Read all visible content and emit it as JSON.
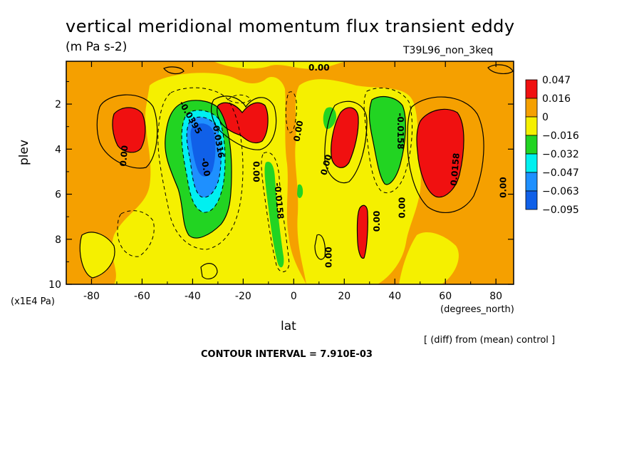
{
  "chart_data": {
    "type": "heatmap",
    "title": "vertical meridional momentum flux transient eddy",
    "units": "(m Pa s-2)",
    "run_label": "T39L96_non_3keq",
    "xlabel": "lat",
    "x_unit": "(degrees_north)",
    "ylabel": "plev",
    "y_unit": "(x1E4 Pa)",
    "x_ticks": [
      "-80",
      "-60",
      "-40",
      "-20",
      "0",
      "20",
      "40",
      "60",
      "80"
    ],
    "y_ticks": [
      "2",
      "4",
      "6",
      "8",
      "10"
    ],
    "xlim": [
      -90,
      87
    ],
    "ylim": [
      10,
      0.1
    ],
    "note": "[ (diff) from (mean) control ]",
    "contour_interval": "CONTOUR INTERVAL = 7.910E-03",
    "legend": {
      "levels": [
        "0.047",
        "0.016",
        "0",
        "−0.016",
        "−0.032",
        "−0.047",
        "−0.063",
        "−0.095"
      ],
      "colors": [
        "#f01010",
        "#f5a000",
        "#f5f000",
        "#22d422",
        "#00f0f0",
        "#1e90ff",
        "#1060e8"
      ]
    },
    "contour_labels": [
      {
        "text": "0.00",
        "lat": 10,
        "p": 0.4,
        "angle": 0
      },
      {
        "text": "0.00",
        "lat": -67,
        "p": 4.3,
        "angle": -85
      },
      {
        "text": "-0.0395",
        "lat": -41,
        "p": 2.6,
        "angle": 60
      },
      {
        "text": "-0.0316",
        "lat": -30,
        "p": 3.6,
        "angle": 80
      },
      {
        "text": "-0.0",
        "lat": -35,
        "p": 4.8,
        "angle": 80
      },
      {
        "text": "0.00",
        "lat": -15,
        "p": 5.0,
        "angle": 90
      },
      {
        "text": "-0.0158",
        "lat": -6,
        "p": 6.3,
        "angle": 85
      },
      {
        "text": "0.00",
        "lat": 2,
        "p": 3.2,
        "angle": -80
      },
      {
        "text": "0.00",
        "lat": 13,
        "p": 4.7,
        "angle": -75
      },
      {
        "text": "-0.0158",
        "lat": 42,
        "p": 3.2,
        "angle": 90
      },
      {
        "text": "0.00",
        "lat": 33,
        "p": 7.2,
        "angle": -90
      },
      {
        "text": "0.00",
        "lat": 43,
        "p": 6.6,
        "angle": -90
      },
      {
        "text": "0.0158",
        "lat": 64,
        "p": 4.9,
        "angle": -85
      },
      {
        "text": "0.00",
        "lat": 83,
        "p": 5.7,
        "angle": -90
      },
      {
        "text": "0.00",
        "lat": 14,
        "p": 8.8,
        "angle": -90
      }
    ],
    "regions": [
      {
        "level": "0.016..0.047",
        "lat": [
          -90,
          87
        ],
        "p": [
          0.1,
          10
        ]
      },
      {
        "level": "0..-0.016",
        "lat": [
          -52,
          15
        ],
        "p": [
          1.0,
          10
        ]
      },
      {
        "level": "0..-0.016",
        "lat": [
          15,
          50
        ],
        "p": [
          1.5,
          9.5
        ]
      },
      {
        "level": ">0.047",
        "lat": [
          -71,
          -58
        ],
        "p": [
          2.2,
          4.4
        ]
      },
      {
        "level": ">0.047",
        "lat": [
          -30,
          -11
        ],
        "p": [
          1.9,
          3.8
        ]
      },
      {
        "level": ">0.047",
        "lat": [
          16,
          31
        ],
        "p": [
          2.2,
          5.0
        ]
      },
      {
        "level": ">0.047",
        "lat": [
          47,
          67
        ],
        "p": [
          2.0,
          6.2
        ]
      },
      {
        "level": ">0.047",
        "lat": [
          27,
          30
        ],
        "p": [
          6.7,
          8.9
        ]
      },
      {
        "level": "-0.016..-0.032",
        "lat": [
          -49,
          -23
        ],
        "p": [
          1.9,
          8.1
        ]
      },
      {
        "level": "-0.016..-0.032",
        "lat": [
          36,
          48
        ],
        "p": [
          1.7,
          5.5
        ]
      },
      {
        "level": "-0.016..-0.032",
        "lat": [
          -12,
          -8
        ],
        "p": [
          4.5,
          9.3
        ]
      },
      {
        "level": "-0.016..-0.032",
        "lat": [
          14,
          19
        ],
        "p": [
          2.2,
          3.1
        ]
      },
      {
        "level": "-0.032..-0.047",
        "lat": [
          -45,
          -25
        ],
        "p": [
          2.1,
          7.2
        ]
      },
      {
        "level": "-0.047..-0.063",
        "lat": [
          -42,
          -28
        ],
        "p": [
          2.4,
          6.2
        ]
      },
      {
        "level": "-0.063..-0.095",
        "lat": [
          -40,
          -31
        ],
        "p": [
          2.7,
          5.2
        ]
      }
    ]
  }
}
